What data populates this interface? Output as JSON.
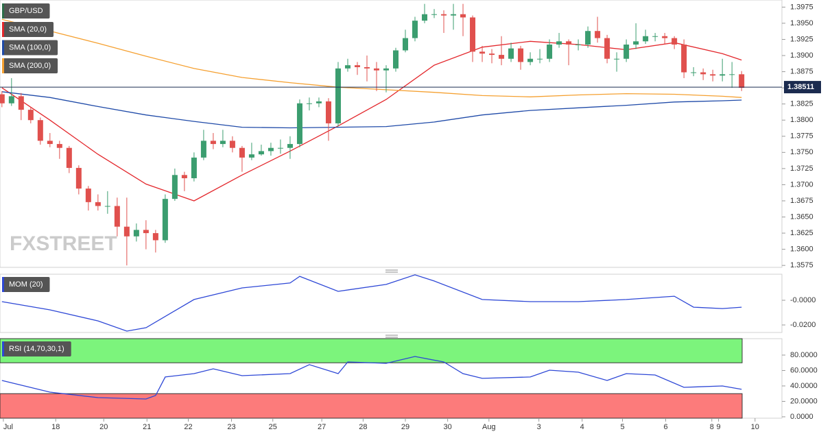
{
  "chart_data": [
    {
      "type": "candlestick",
      "title": "GBP/USD",
      "watermark": "FXSTREET",
      "xlim": [
        -0.2,
        81.2
      ],
      "ylim": [
        1.3572,
        1.3986
      ],
      "yticks": [
        1.3575,
        {
          "value": 1.36,
          "label": "1.3600"
        },
        1.3625,
        {
          "value": 1.365,
          "label": "1.3650"
        },
        1.3675,
        {
          "value": 1.37,
          "label": "1.3700"
        },
        1.3725,
        {
          "value": 1.375,
          "label": "1.3750"
        },
        1.3775,
        {
          "value": 1.38,
          "label": "1.3800"
        },
        1.3825,
        {
          "value": 1.385,
          "label": "1.3850"
        },
        1.3875,
        {
          "value": 1.39,
          "label": "1.3900"
        },
        1.3925,
        {
          "value": 1.395,
          "label": "1.3950"
        },
        1.3975
      ],
      "up_color": "#3b9d6f",
      "down_color": "#e0504d",
      "open": [
        1.384,
        1.3826,
        1.3837,
        1.3816,
        1.38,
        1.3768,
        1.3763,
        1.3757,
        1.3726,
        1.3694,
        1.3673,
        1.3667,
        1.3667,
        1.3635,
        1.362,
        1.363,
        1.3625,
        1.3614,
        1.3678,
        1.3715,
        1.371,
        1.3742,
        1.3768,
        1.3763,
        1.3768,
        1.3757,
        1.3742,
        1.3747,
        1.3752,
        1.3757,
        1.3757,
        1.3763,
        1.3826,
        1.3826,
        1.3829,
        1.3795,
        1.388,
        1.3885,
        1.3882,
        1.388,
        1.3877,
        1.388,
        1.3908,
        1.3927,
        1.3954,
        1.3964,
        1.3964,
        1.3962,
        1.3964,
        1.3959,
        1.3906,
        1.3903,
        1.3901,
        1.3895,
        1.3911,
        1.389,
        1.3895,
        1.3895,
        1.3917,
        1.3922,
        1.3917,
        1.3917,
        1.3938,
        1.3927,
        1.3895,
        1.3895,
        1.3917,
        1.3922,
        1.393,
        1.393,
        1.3927,
        1.3917,
        1.3874,
        1.3874,
        1.3871,
        1.3869,
        1.3871,
        1.3871
      ],
      "high": [
        1.3845,
        1.3865,
        1.3842,
        1.382,
        1.3804,
        1.378,
        1.3768,
        1.376,
        1.373,
        1.3698,
        1.3685,
        1.369,
        1.368,
        1.368,
        1.364,
        1.3645,
        1.363,
        1.3685,
        1.3725,
        1.372,
        1.375,
        1.3785,
        1.378,
        1.3785,
        1.3775,
        1.376,
        1.3765,
        1.3762,
        1.3765,
        1.377,
        1.3775,
        1.3832,
        1.3835,
        1.3835,
        1.3834,
        1.389,
        1.3895,
        1.389,
        1.39,
        1.389,
        1.3885,
        1.3912,
        1.394,
        1.396,
        1.398,
        1.3972,
        1.397,
        1.398,
        1.398,
        1.3962,
        1.3915,
        1.391,
        1.393,
        1.392,
        1.3915,
        1.3905,
        1.391,
        1.3925,
        1.3935,
        1.3925,
        1.3925,
        1.3945,
        1.396,
        1.3932,
        1.3905,
        1.3925,
        1.395,
        1.394,
        1.3935,
        1.3935,
        1.393,
        1.3925,
        1.3882,
        1.388,
        1.3878,
        1.3895,
        1.389,
        1.3876
      ],
      "low": [
        1.382,
        1.3822,
        1.38,
        1.3795,
        1.3762,
        1.3758,
        1.374,
        1.3718,
        1.3685,
        1.366,
        1.366,
        1.3655,
        1.362,
        1.3575,
        1.3612,
        1.36,
        1.3595,
        1.361,
        1.3675,
        1.369,
        1.3705,
        1.3738,
        1.3755,
        1.3758,
        1.375,
        1.372,
        1.3738,
        1.3745,
        1.3745,
        1.3748,
        1.374,
        1.3758,
        1.3815,
        1.382,
        1.3768,
        1.379,
        1.3875,
        1.387,
        1.386,
        1.3845,
        1.3843,
        1.3875,
        1.3905,
        1.3922,
        1.395,
        1.3958,
        1.3935,
        1.394,
        1.393,
        1.389,
        1.389,
        1.3888,
        1.3885,
        1.389,
        1.3878,
        1.3885,
        1.3888,
        1.389,
        1.3912,
        1.3885,
        1.3908,
        1.3912,
        1.392,
        1.3888,
        1.3875,
        1.389,
        1.391,
        1.3918,
        1.3922,
        1.3918,
        1.391,
        1.3865,
        1.3868,
        1.3862,
        1.386,
        1.386,
        1.385,
        1.3845
      ],
      "close": [
        1.3826,
        1.3837,
        1.3816,
        1.38,
        1.3768,
        1.3763,
        1.3757,
        1.3726,
        1.3694,
        1.3673,
        1.3667,
        1.3667,
        1.3635,
        1.362,
        1.363,
        1.3625,
        1.3614,
        1.3678,
        1.3715,
        1.371,
        1.3742,
        1.3768,
        1.3763,
        1.3768,
        1.3757,
        1.3742,
        1.3747,
        1.3752,
        1.3757,
        1.3757,
        1.3763,
        1.3826,
        1.3826,
        1.3829,
        1.3795,
        1.388,
        1.3885,
        1.3882,
        1.388,
        1.3877,
        1.388,
        1.3908,
        1.3927,
        1.3954,
        1.3964,
        1.3964,
        1.3962,
        1.3964,
        1.3959,
        1.3906,
        1.3903,
        1.3901,
        1.3895,
        1.3911,
        1.389,
        1.3895,
        1.3895,
        1.3917,
        1.3922,
        1.3917,
        1.3917,
        1.3938,
        1.3927,
        1.3895,
        1.3895,
        1.3917,
        1.3922,
        1.393,
        1.393,
        1.3927,
        1.3917,
        1.3874,
        1.3874,
        1.3871,
        1.3869,
        1.3871,
        1.3871,
        1.385
      ],
      "series": [
        {
          "name": "SMA (20,0)",
          "color": "#e3262b",
          "x": [
            0,
            5,
            10,
            15,
            20,
            25,
            30,
            35,
            40,
            45,
            50,
            55,
            60,
            65,
            70,
            75,
            77
          ],
          "values": [
            1.385,
            1.38,
            1.3747,
            1.3701,
            1.3675,
            1.3715,
            1.3752,
            1.3791,
            1.3832,
            1.3885,
            1.3913,
            1.3922,
            1.3917,
            1.3909,
            1.392,
            1.3903,
            1.3893
          ]
        },
        {
          "name": "SMA (100,0)",
          "color": "#1f4aa8",
          "x": [
            0,
            5,
            10,
            15,
            20,
            25,
            30,
            35,
            40,
            45,
            50,
            55,
            60,
            65,
            70,
            75,
            77
          ],
          "values": [
            1.3844,
            1.3835,
            1.3821,
            1.3808,
            1.3798,
            1.3789,
            1.3788,
            1.3789,
            1.379,
            1.3797,
            1.3808,
            1.3815,
            1.3819,
            1.3823,
            1.3828,
            1.383,
            1.3831
          ]
        },
        {
          "name": "SMA (200,0)",
          "color": "#f5a030",
          "x": [
            0,
            5,
            10,
            15,
            20,
            25,
            30,
            35,
            40,
            45,
            50,
            55,
            60,
            65,
            70,
            75,
            77
          ],
          "values": [
            1.3956,
            1.3938,
            1.3919,
            1.3899,
            1.388,
            1.3866,
            1.3858,
            1.3851,
            1.3847,
            1.3843,
            1.3838,
            1.3836,
            1.3839,
            1.3841,
            1.384,
            1.3837,
            1.3835
          ]
        }
      ],
      "last_price": 1.38511,
      "last_price_color": "#1b2b4f"
    },
    {
      "type": "line",
      "xlim": [
        -0.2,
        81.2
      ],
      "ylim": [
        -0.0261,
        0.0211
      ],
      "yticks": [
        {
          "value": 0,
          "label": "-0.0000"
        },
        {
          "value": -0.02,
          "label": "-0.0200"
        }
      ],
      "series": [
        {
          "name": "MOM (20)",
          "color": "#2d47d6",
          "x": [
            0,
            5,
            10,
            13,
            15,
            20,
            25,
            30,
            31,
            35,
            40,
            43,
            45,
            50,
            55,
            60,
            65,
            70,
            72,
            75,
            77
          ],
          "values": [
            -0.0011,
            -0.0078,
            -0.0167,
            -0.025,
            -0.0222,
            0.0006,
            0.01,
            0.014,
            0.0194,
            0.0072,
            0.0128,
            0.0206,
            0.0156,
            0.0006,
            -0.0011,
            -0.0011,
            0.0006,
            0.0033,
            -0.0056,
            -0.0067,
            -0.0056
          ]
        }
      ]
    },
    {
      "type": "line",
      "xlim": [
        -0.2,
        81.2
      ],
      "ylim": [
        -1.8,
        101.3
      ],
      "yticks": [
        {
          "value": 80,
          "label": "80.0000"
        },
        {
          "value": 60,
          "label": "60.0000"
        },
        {
          "value": 40,
          "label": "40.0000"
        },
        {
          "value": 20,
          "label": "20.0000"
        },
        {
          "value": 0,
          "label": "0.0000"
        }
      ],
      "overbought": 70,
      "oversold": 30,
      "overbought_color": "#7cf47c",
      "oversold_color": "#fc7b7b",
      "series": [
        {
          "name": "RSI (14,70,30,1)",
          "color": "#2d47d6",
          "x": [
            0,
            5,
            10,
            15,
            16,
            17,
            20,
            22,
            25,
            30,
            32,
            35,
            36,
            40,
            43,
            46,
            48,
            50,
            55,
            57,
            60,
            63,
            65,
            68,
            71,
            75,
            77
          ],
          "values": [
            47.1,
            32,
            24.9,
            23.1,
            27.6,
            51.6,
            56,
            62.2,
            53.3,
            56,
            67.6,
            56,
            71.1,
            69.3,
            78.2,
            71.1,
            56,
            49.8,
            51.6,
            60.4,
            57.8,
            47.1,
            56,
            54.2,
            38.2,
            40,
            35.6
          ]
        }
      ],
      "xticks": [
        {
          "value": 0.15,
          "label": "Jul"
        },
        {
          "value": 5.6,
          "label": "18"
        },
        {
          "value": 10.6,
          "label": "20"
        },
        {
          "value": 15.1,
          "label": "21"
        },
        {
          "value": 19.4,
          "label": "22"
        },
        {
          "value": 23.9,
          "label": "23"
        },
        {
          "value": 28.2,
          "label": "25"
        },
        {
          "value": 33.3,
          "label": "27"
        },
        {
          "value": 37.6,
          "label": "28"
        },
        {
          "value": 42,
          "label": "29"
        },
        {
          "value": 46.4,
          "label": "30"
        },
        {
          "value": 50.7,
          "label": "Aug"
        },
        {
          "value": 55.9,
          "label": "3"
        },
        {
          "value": 60.4,
          "label": "4"
        },
        {
          "value": 64.6,
          "label": "5"
        },
        {
          "value": 69.1,
          "label": "6"
        },
        {
          "value": 73.9,
          "label": "8"
        },
        {
          "value": 74.6,
          "label": "9"
        },
        {
          "value": 78.4,
          "label": "10"
        }
      ]
    }
  ]
}
